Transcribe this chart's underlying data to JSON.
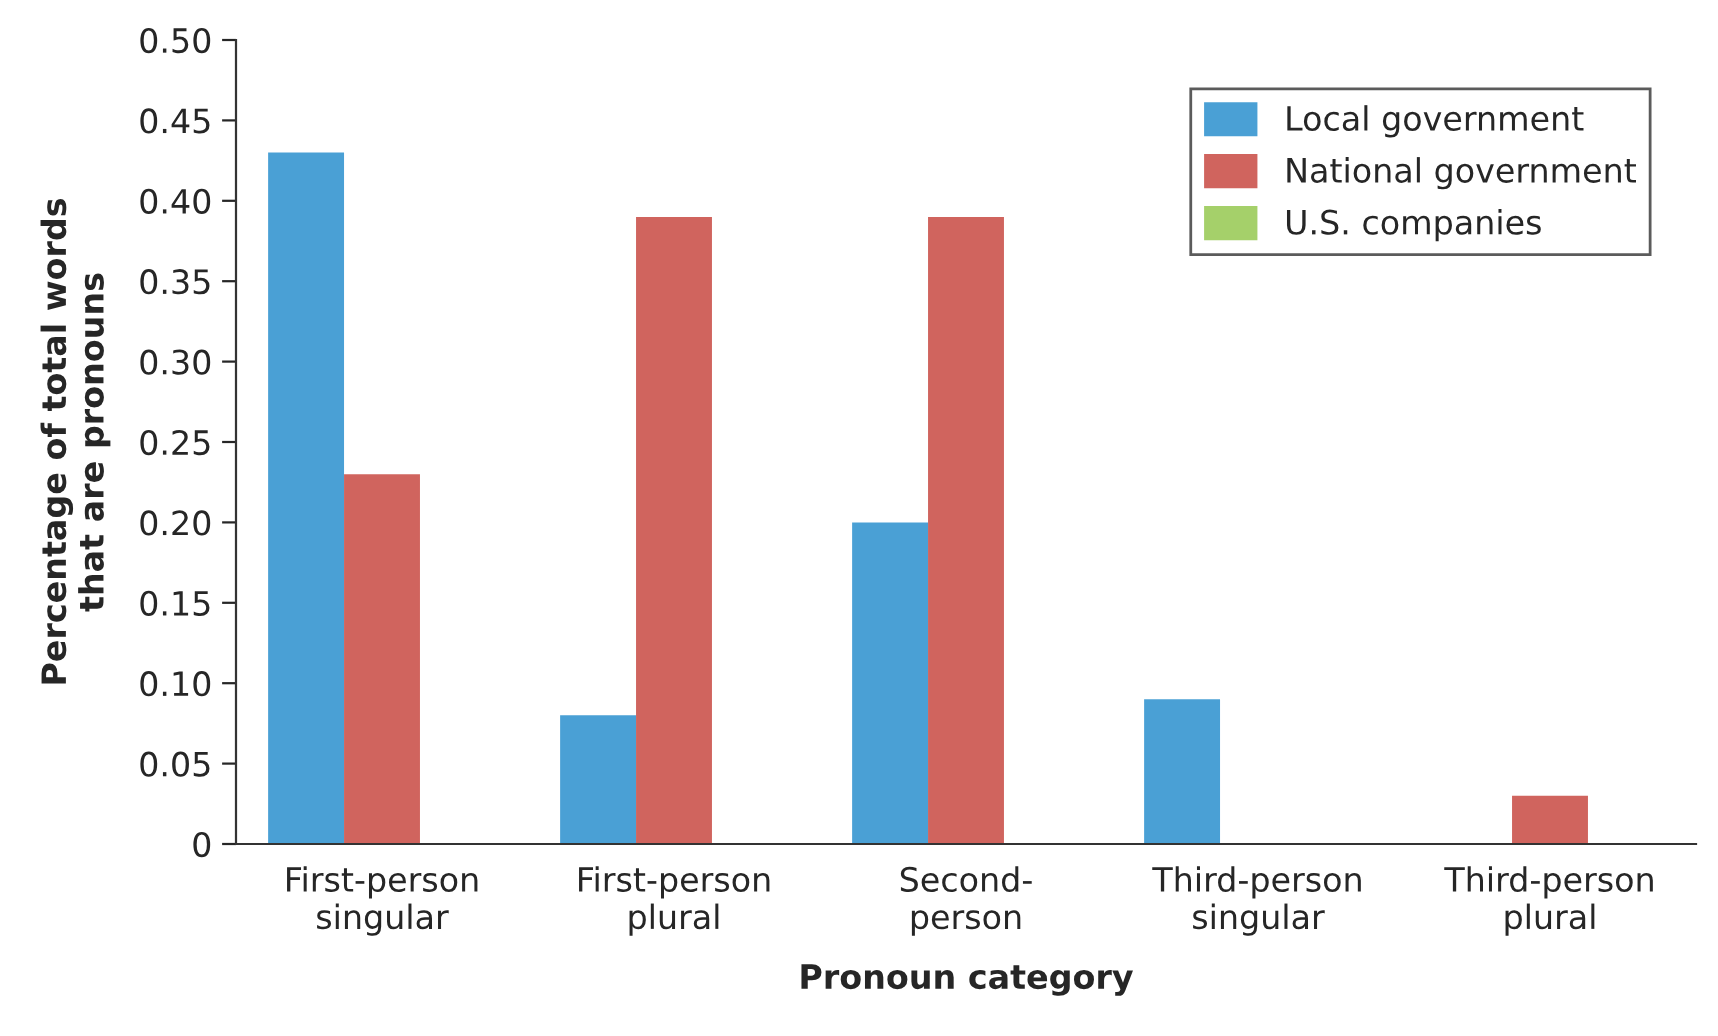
{
  "chart_data": {
    "type": "bar",
    "xlabel": "Pronoun category",
    "ylabel": "Percentage of total words\nthat are pronouns",
    "categories": [
      "First-person\nsingular",
      "First-person\nplural",
      "Second-\nperson",
      "Third-person\nsingular",
      "Third-person\nplural"
    ],
    "series": [
      {
        "name": "Local government",
        "color": "#4aa0d5",
        "values": [
          0.43,
          0.08,
          0.2,
          0.09,
          0
        ]
      },
      {
        "name": "National government",
        "color": "#d0645e",
        "values": [
          0.23,
          0.39,
          0.39,
          0,
          0.03
        ]
      },
      {
        "name": "U.S. companies",
        "color": "#a5d06a",
        "values": [
          0,
          0,
          0,
          0,
          0
        ]
      }
    ],
    "ylim": [
      0,
      0.5
    ],
    "yticks": [
      {
        "value": 0,
        "label": "0"
      },
      {
        "value": 0.05,
        "label": "0.05"
      },
      {
        "value": 0.1,
        "label": "0.10"
      },
      {
        "value": 0.15,
        "label": "0.15"
      },
      {
        "value": 0.2,
        "label": "0.20"
      },
      {
        "value": 0.25,
        "label": "0.25"
      },
      {
        "value": 0.3,
        "label": "0.30"
      },
      {
        "value": 0.35,
        "label": "0.35"
      },
      {
        "value": 0.4,
        "label": "0.40"
      },
      {
        "value": 0.45,
        "label": "0.45"
      },
      {
        "value": 0.5,
        "label": "0.50"
      }
    ],
    "grid": false,
    "legend": "top right"
  }
}
